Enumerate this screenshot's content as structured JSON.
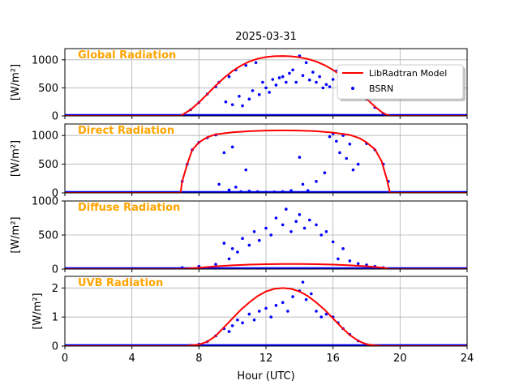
{
  "chart_data": {
    "type": "line+scatter",
    "title": "2025-03-31",
    "xlabel": "Hour (UTC)",
    "xlim": [
      0,
      24
    ],
    "xticks": [
      0,
      4,
      8,
      12,
      16,
      20,
      24
    ],
    "grid": true,
    "legend": {
      "placement": "upper-right of first panel",
      "entries": [
        {
          "name": "LibRadtran Model",
          "color": "#ff0000",
          "kind": "line"
        },
        {
          "name": "BSRN",
          "color": "#0000ff",
          "kind": "marker"
        }
      ]
    },
    "colors": {
      "model": "#ff0000",
      "obs": "#0000ff",
      "panel_title": "#FFA500"
    },
    "panels": [
      {
        "title": "Global Radiation",
        "ylabel": "[W/m²]",
        "ylim": [
          0,
          1200
        ],
        "yticks": [
          0,
          500,
          1000
        ],
        "model": {
          "x": [
            0,
            6.9,
            7.5,
            8,
            8.5,
            9,
            9.5,
            10,
            10.5,
            11,
            11.5,
            12,
            12.5,
            13,
            13.5,
            14,
            14.5,
            15,
            15.5,
            16,
            16.5,
            17,
            17.5,
            18,
            18.5,
            19,
            19.4,
            24
          ],
          "y": [
            0,
            0,
            110,
            240,
            390,
            540,
            680,
            800,
            895,
            970,
            1020,
            1050,
            1065,
            1068,
            1062,
            1045,
            1015,
            970,
            905,
            820,
            715,
            590,
            450,
            305,
            165,
            45,
            0,
            0
          ]
        },
        "observed": {
          "x": [
            2.7,
            4.0,
            7.5,
            8.0,
            8.5,
            9.0,
            9.2,
            9.6,
            9.8,
            10.0,
            10.2,
            10.4,
            10.6,
            10.8,
            11.0,
            11.2,
            11.4,
            11.6,
            11.8,
            12.0,
            12.2,
            12.4,
            12.6,
            12.8,
            13.0,
            13.2,
            13.4,
            13.6,
            13.8,
            14.0,
            14.2,
            14.4,
            14.6,
            14.8,
            15.0,
            15.2,
            15.4,
            15.6,
            15.8,
            16.0,
            16.2,
            16.4,
            16.6,
            16.8,
            17.0,
            17.5,
            18.0,
            18.5,
            19.0
          ],
          "y": [
            5,
            3,
            110,
            240,
            390,
            520,
            600,
            250,
            700,
            200,
            820,
            350,
            180,
            900,
            300,
            450,
            950,
            380,
            600,
            500,
            420,
            650,
            550,
            680,
            700,
            600,
            760,
            820,
            600,
            1070,
            720,
            950,
            640,
            780,
            600,
            700,
            500,
            560,
            520,
            650,
            800,
            560,
            620,
            520,
            590,
            450,
            300,
            150,
            40
          ]
        }
      },
      {
        "title": "Direct Radiation",
        "ylabel": "[W/m²]",
        "ylim": [
          0,
          1200
        ],
        "yticks": [
          0,
          500,
          1000
        ],
        "model": {
          "x": [
            0,
            6.9,
            7.0,
            7.3,
            7.6,
            8.0,
            8.5,
            9.0,
            10,
            11,
            12,
            13,
            14,
            15,
            16,
            17,
            17.6,
            18.0,
            18.5,
            18.9,
            19.2,
            19.4,
            24
          ],
          "y": [
            0,
            0,
            200,
            500,
            750,
            880,
            970,
            1020,
            1055,
            1075,
            1085,
            1088,
            1085,
            1075,
            1050,
            1010,
            950,
            880,
            760,
            550,
            250,
            0,
            0
          ]
        },
        "observed": {
          "x": [
            7.0,
            7.3,
            7.6,
            8.0,
            8.5,
            9.0,
            9.2,
            9.5,
            9.8,
            10.0,
            10.2,
            10.5,
            10.8,
            11.0,
            11.5,
            12.0,
            12.5,
            13.0,
            13.5,
            14.0,
            14.2,
            14.5,
            15.0,
            15.5,
            15.8,
            16.0,
            16.2,
            16.4,
            16.6,
            16.8,
            17.0,
            17.2,
            17.5,
            18.0,
            18.5,
            19.0,
            19.3,
            19.5
          ],
          "y": [
            200,
            500,
            750,
            880,
            960,
            1010,
            150,
            700,
            50,
            800,
            100,
            20,
            400,
            30,
            20,
            10,
            15,
            20,
            40,
            620,
            150,
            40,
            200,
            350,
            980,
            1030,
            900,
            700,
            1000,
            600,
            850,
            400,
            500,
            860,
            750,
            500,
            200,
            0
          ]
        }
      },
      {
        "title": "Diffuse Radiation",
        "ylabel": "[W/m²]",
        "ylim": [
          0,
          1000
        ],
        "yticks": [
          0,
          500,
          1000
        ],
        "model": {
          "x": [
            0,
            6.9,
            8,
            9,
            10,
            11,
            12,
            13,
            14,
            15,
            16,
            17,
            18,
            19,
            19.4,
            24
          ],
          "y": [
            0,
            0,
            20,
            40,
            55,
            65,
            72,
            75,
            75,
            72,
            65,
            55,
            40,
            20,
            0,
            0
          ]
        },
        "observed": {
          "x": [
            7.0,
            8.0,
            9.0,
            9.5,
            9.8,
            10.0,
            10.3,
            10.6,
            11.0,
            11.3,
            11.6,
            12.0,
            12.3,
            12.6,
            13.0,
            13.2,
            13.5,
            13.8,
            14.0,
            14.3,
            14.6,
            15.0,
            15.3,
            15.6,
            16.0,
            16.3,
            16.6,
            17.0,
            17.5,
            18.0,
            18.5,
            19.0
          ],
          "y": [
            20,
            40,
            70,
            380,
            150,
            300,
            250,
            450,
            350,
            550,
            420,
            600,
            500,
            750,
            650,
            880,
            550,
            700,
            800,
            600,
            720,
            650,
            500,
            550,
            400,
            150,
            300,
            120,
            80,
            60,
            40,
            20
          ]
        }
      },
      {
        "title": "UVB Radiation",
        "ylabel": "[W/m²]",
        "ylim": [
          0,
          2.4
        ],
        "yticks": [
          0,
          1,
          2
        ],
        "model": {
          "x": [
            0,
            7.2,
            8,
            8.5,
            9,
            9.5,
            10,
            10.5,
            11,
            11.5,
            12,
            12.5,
            13,
            13.5,
            14,
            14.5,
            15,
            15.5,
            16,
            16.5,
            17,
            17.5,
            18,
            18.5,
            19,
            24
          ],
          "y": [
            0,
            0,
            0.05,
            0.15,
            0.35,
            0.65,
            0.95,
            1.25,
            1.5,
            1.72,
            1.88,
            1.97,
            2.0,
            1.97,
            1.88,
            1.72,
            1.5,
            1.25,
            0.95,
            0.65,
            0.38,
            0.18,
            0.06,
            0.02,
            0,
            0
          ]
        },
        "observed": {
          "x": [
            7.5,
            8.0,
            8.5,
            9.0,
            9.5,
            9.8,
            10.0,
            10.3,
            10.6,
            11.0,
            11.3,
            11.6,
            12.0,
            12.3,
            12.6,
            13.0,
            13.3,
            13.6,
            14.0,
            14.2,
            14.4,
            14.7,
            15.0,
            15.3,
            15.6,
            16.0,
            16.3,
            16.6,
            17.0,
            17.5,
            18.0
          ],
          "y": [
            0.02,
            0.06,
            0.15,
            0.35,
            0.6,
            0.5,
            0.7,
            0.9,
            0.8,
            1.1,
            0.9,
            1.2,
            1.3,
            1.0,
            1.4,
            1.5,
            1.2,
            1.7,
            1.9,
            2.2,
            1.6,
            1.8,
            1.2,
            1.0,
            1.1,
            1.0,
            0.8,
            0.6,
            0.4,
            0.18,
            0.05
          ]
        }
      }
    ]
  }
}
